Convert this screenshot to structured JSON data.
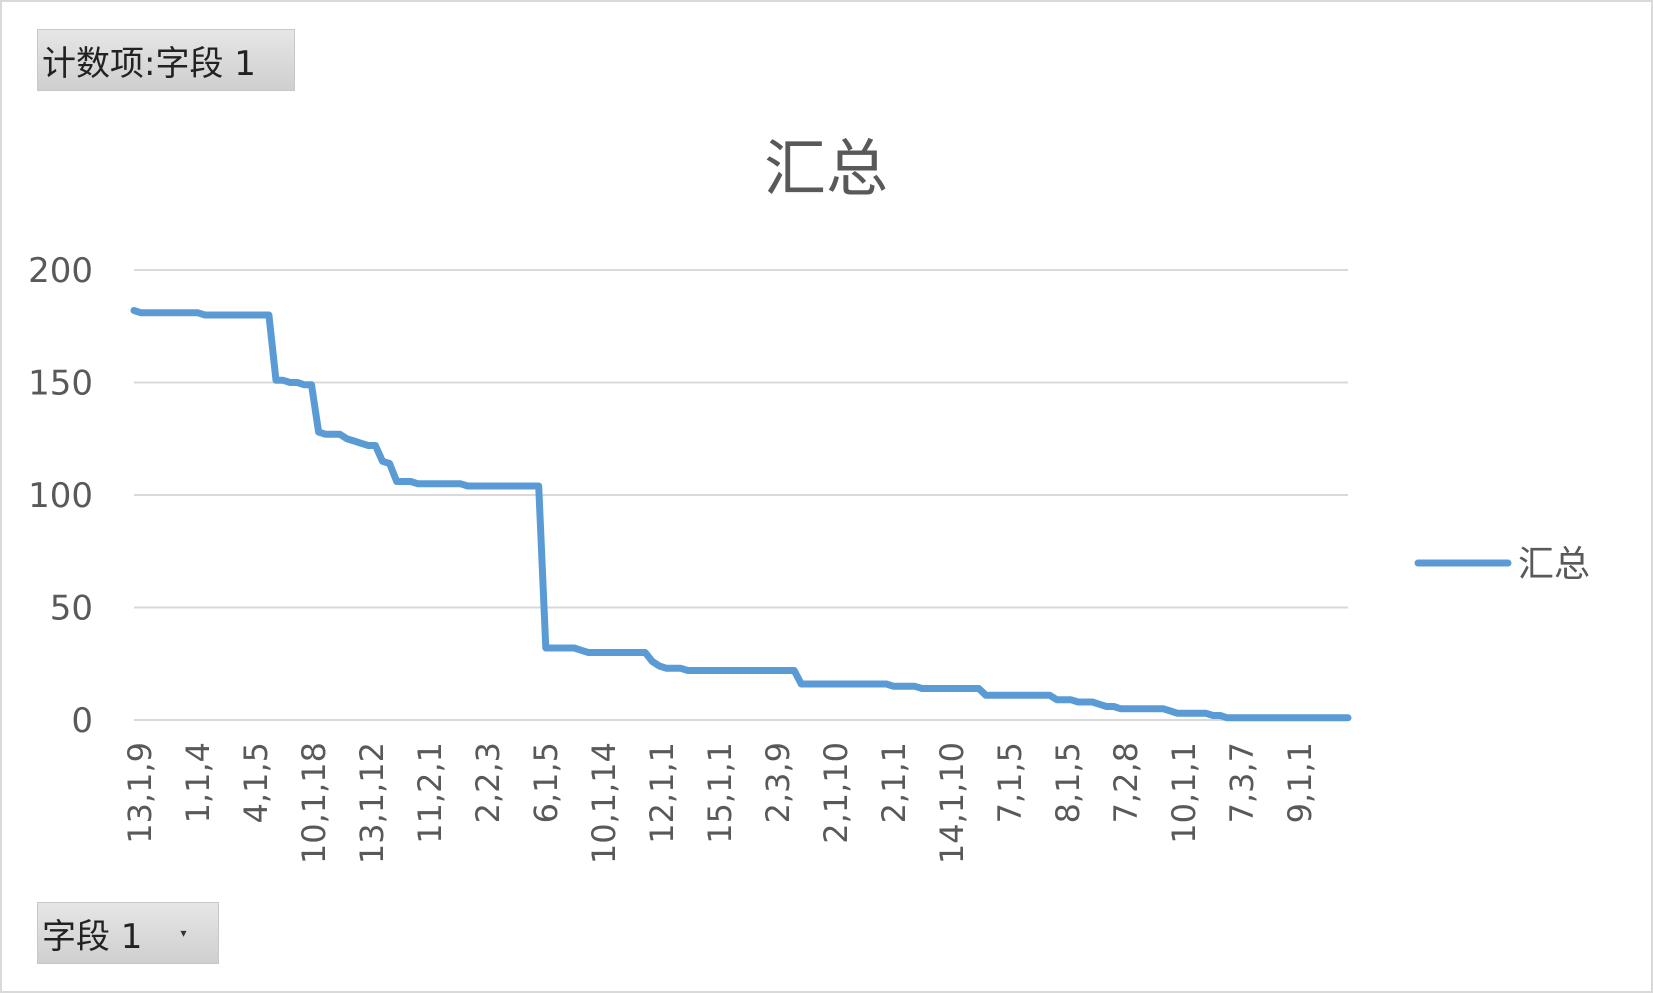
{
  "pivot": {
    "values_button": "计数项:字段 1",
    "axis_button": "字段 1"
  },
  "chart_data": {
    "type": "line",
    "title": "汇总",
    "xlabel": "",
    "ylabel": "",
    "ylim": [
      0,
      200
    ],
    "yticks": [
      0,
      50,
      100,
      150,
      200
    ],
    "grid": true,
    "legend_position": "right",
    "x_tick_labels": [
      "13,1,9",
      "1,1,4",
      "4,1,5",
      "10,1,18",
      "13,1,12",
      "11,2,1",
      "2,2,3",
      "6,1,5",
      "10,1,14",
      "12,1,1",
      "15,1,1",
      "2,3,9",
      "2,1,10",
      "2,1,1",
      "14,1,10",
      "7,1,5",
      "8,1,5",
      "7,2,8",
      "10,1,1",
      "7,3,7",
      "9,1,1"
    ],
    "series": [
      {
        "name": "汇总",
        "color": "#5b9bd5",
        "values": [
          182,
          181,
          181,
          181,
          181,
          181,
          181,
          181,
          181,
          181,
          180,
          180,
          180,
          180,
          180,
          180,
          180,
          180,
          180,
          180,
          151,
          151,
          150,
          150,
          149,
          149,
          128,
          127,
          127,
          127,
          125,
          124,
          123,
          122,
          122,
          115,
          114,
          106,
          106,
          106,
          105,
          105,
          105,
          105,
          105,
          105,
          105,
          104,
          104,
          104,
          104,
          104,
          104,
          104,
          104,
          104,
          104,
          104,
          32,
          32,
          32,
          32,
          32,
          31,
          30,
          30,
          30,
          30,
          30,
          30,
          30,
          30,
          30,
          26,
          24,
          23,
          23,
          23,
          22,
          22,
          22,
          22,
          22,
          22,
          22,
          22,
          22,
          22,
          22,
          22,
          22,
          22,
          22,
          22,
          16,
          16,
          16,
          16,
          16,
          16,
          16,
          16,
          16,
          16,
          16,
          16,
          16,
          15,
          15,
          15,
          15,
          14,
          14,
          14,
          14,
          14,
          14,
          14,
          14,
          14,
          11,
          11,
          11,
          11,
          11,
          11,
          11,
          11,
          11,
          11,
          9,
          9,
          9,
          8,
          8,
          8,
          7,
          6,
          6,
          5,
          5,
          5,
          5,
          5,
          5,
          5,
          4,
          3,
          3,
          3,
          3,
          3,
          2,
          2,
          1,
          1,
          1,
          1,
          1,
          1,
          1,
          1,
          1,
          1,
          1,
          1,
          1,
          1,
          1,
          1,
          1,
          1
        ]
      }
    ]
  }
}
